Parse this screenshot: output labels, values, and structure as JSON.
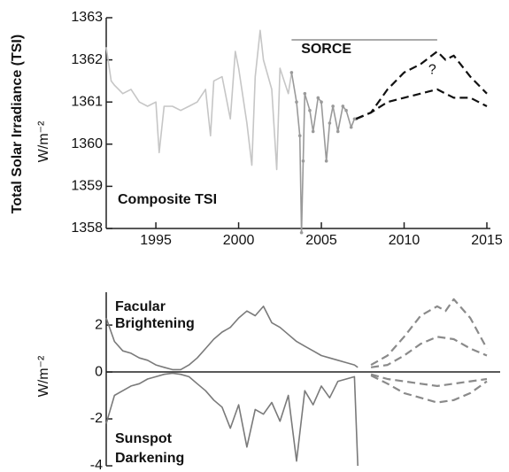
{
  "chart_data": [
    {
      "type": "line",
      "ylabel": "Total Solar Irradiance (TSI)",
      "yunit": "W/m⁻²",
      "annotations": [
        "SORCE",
        "Composite TSI",
        "?"
      ],
      "sorce_period": [
        2003.2,
        2012
      ],
      "xlim": [
        1992,
        2015
      ],
      "xticks": [
        1995,
        2000,
        2005,
        2010,
        2015
      ],
      "ylim": [
        1358,
        1363
      ],
      "yticks": [
        1358,
        1359,
        1360,
        1361,
        1362,
        1363
      ],
      "series": [
        {
          "name": "Composite",
          "color": "#c6c6c6",
          "dashed": false,
          "markers": false,
          "x": [
            1992,
            1992.3,
            1992.5,
            1993,
            1993.5,
            1994,
            1994.5,
            1995,
            1995.2,
            1995.5,
            1996,
            1996.5,
            1997,
            1997.5,
            1998,
            1998.3,
            1998.5,
            1999,
            1999.5,
            1999.8,
            2000,
            2000.5,
            2000.8,
            2001,
            2001.3,
            2001.5,
            2002,
            2002.3,
            2002.5,
            2003,
            2003.2
          ],
          "values": [
            1362.3,
            1361.5,
            1361.4,
            1361.2,
            1361.3,
            1361.0,
            1360.9,
            1361.0,
            1359.8,
            1360.9,
            1360.9,
            1360.8,
            1360.9,
            1361.0,
            1361.3,
            1360.2,
            1361.5,
            1361.6,
            1360.6,
            1362.2,
            1361.8,
            1360.5,
            1359.5,
            1361.6,
            1362.7,
            1362.0,
            1361.3,
            1359.4,
            1361.8,
            1361.2,
            1361.7
          ]
        },
        {
          "name": "SORCE",
          "color": "#9a9a9a",
          "dashed": false,
          "markers": true,
          "x": [
            2003.2,
            2003.5,
            2003.7,
            2003.8,
            2003.9,
            2004,
            2004.3,
            2004.5,
            2004.8,
            2005,
            2005.3,
            2005.5,
            2005.7,
            2006,
            2006.3,
            2006.5,
            2006.8,
            2007,
            2007.1
          ],
          "values": [
            1361.7,
            1361.0,
            1360.2,
            1357.9,
            1359.6,
            1361.2,
            1360.8,
            1360.3,
            1361.1,
            1361.0,
            1359.6,
            1360.5,
            1360.9,
            1360.3,
            1360.9,
            1360.8,
            1360.4,
            1360.6,
            1360.6
          ]
        },
        {
          "name": "Projection high",
          "color": "#111111",
          "dashed": true,
          "markers": false,
          "x": [
            2007.1,
            2008,
            2009,
            2010,
            2011,
            2012,
            2012.5,
            2013,
            2014,
            2015
          ],
          "values": [
            1360.6,
            1360.75,
            1361.3,
            1361.7,
            1361.9,
            1362.2,
            1362.0,
            1362.1,
            1361.6,
            1361.2
          ]
        },
        {
          "name": "Projection low",
          "color": "#111111",
          "dashed": true,
          "markers": false,
          "x": [
            2007.1,
            2008,
            2009,
            2010,
            2011,
            2012,
            2013,
            2014,
            2015
          ],
          "values": [
            1360.6,
            1360.75,
            1361.0,
            1361.1,
            1361.2,
            1361.3,
            1361.1,
            1361.1,
            1360.9
          ]
        }
      ]
    },
    {
      "type": "line",
      "yunit": "W/m⁻²",
      "annotations": [
        "Facular",
        "Brightening",
        "Sunspot",
        "Darkening"
      ],
      "xlim": [
        1992,
        2015
      ],
      "ylim": [
        -4,
        3.4
      ],
      "yticks": [
        -4,
        -2,
        0,
        2
      ],
      "series": [
        {
          "name": "Facular",
          "color": "#7a7a7a",
          "dashed": false,
          "x": [
            1992,
            1992.5,
            1993,
            1993.5,
            1994,
            1994.5,
            1995,
            1995.5,
            1996,
            1996.5,
            1997,
            1997.5,
            1998,
            1998.5,
            1999,
            1999.5,
            2000,
            2000.5,
            2001,
            2001.5,
            2002,
            2002.5,
            2003,
            2003.5,
            2004,
            2004.5,
            2005,
            2005.5,
            2006,
            2006.5,
            2007,
            2007.2
          ],
          "values": [
            2.3,
            1.3,
            0.9,
            0.8,
            0.6,
            0.5,
            0.3,
            0.2,
            0.1,
            0.1,
            0.3,
            0.6,
            1.0,
            1.4,
            1.7,
            1.9,
            2.3,
            2.6,
            2.4,
            2.8,
            2.1,
            1.9,
            1.6,
            1.3,
            1.1,
            0.9,
            0.7,
            0.6,
            0.5,
            0.4,
            0.3,
            0.2
          ]
        },
        {
          "name": "Sunspot",
          "color": "#7a7a7a",
          "dashed": false,
          "x": [
            1992,
            1992.5,
            1993,
            1993.5,
            1994,
            1994.5,
            1995,
            1995.5,
            1996,
            1996.5,
            1997,
            1997.5,
            1998,
            1998.5,
            1999,
            1999.5,
            2000,
            2000.5,
            2001,
            2001.5,
            2002,
            2002.5,
            2003,
            2003.5,
            2004,
            2004.5,
            2005,
            2005.5,
            2006,
            2006.5,
            2007,
            2007.2
          ],
          "values": [
            -2.2,
            -1.0,
            -0.8,
            -0.6,
            -0.5,
            -0.3,
            -0.2,
            -0.1,
            -0.05,
            -0.1,
            -0.2,
            -0.5,
            -0.8,
            -1.2,
            -1.5,
            -2.4,
            -1.4,
            -3.2,
            -1.6,
            -1.8,
            -1.3,
            -2.1,
            -1.0,
            -3.8,
            -0.8,
            -1.4,
            -0.6,
            -1.1,
            -0.4,
            -0.3,
            -0.2,
            -4.0
          ]
        },
        {
          "name": "Facular projection high",
          "color": "#8a8a8a",
          "dashed": true,
          "x": [
            2008,
            2009,
            2010,
            2011,
            2012,
            2012.5,
            2013,
            2014,
            2015
          ],
          "values": [
            0.3,
            0.7,
            1.5,
            2.4,
            2.8,
            2.6,
            3.1,
            2.3,
            1.0
          ]
        },
        {
          "name": "Facular projection low",
          "color": "#8a8a8a",
          "dashed": true,
          "x": [
            2008,
            2009,
            2010,
            2011,
            2012,
            2013,
            2014,
            2015
          ],
          "values": [
            0.2,
            0.3,
            0.7,
            1.2,
            1.5,
            1.4,
            1.0,
            0.7
          ]
        },
        {
          "name": "Sunspot projection high",
          "color": "#8a8a8a",
          "dashed": true,
          "x": [
            2008,
            2009,
            2010,
            2011,
            2012,
            2013,
            2014,
            2015
          ],
          "values": [
            -0.1,
            -0.3,
            -0.4,
            -0.5,
            -0.6,
            -0.5,
            -0.4,
            -0.3
          ]
        },
        {
          "name": "Sunspot projection low",
          "color": "#8a8a8a",
          "dashed": true,
          "x": [
            2008,
            2009,
            2010,
            2011,
            2012,
            2013,
            2014,
            2015
          ],
          "values": [
            -0.15,
            -0.5,
            -0.9,
            -1.1,
            -1.3,
            -1.2,
            -0.9,
            -0.4
          ]
        }
      ]
    }
  ]
}
